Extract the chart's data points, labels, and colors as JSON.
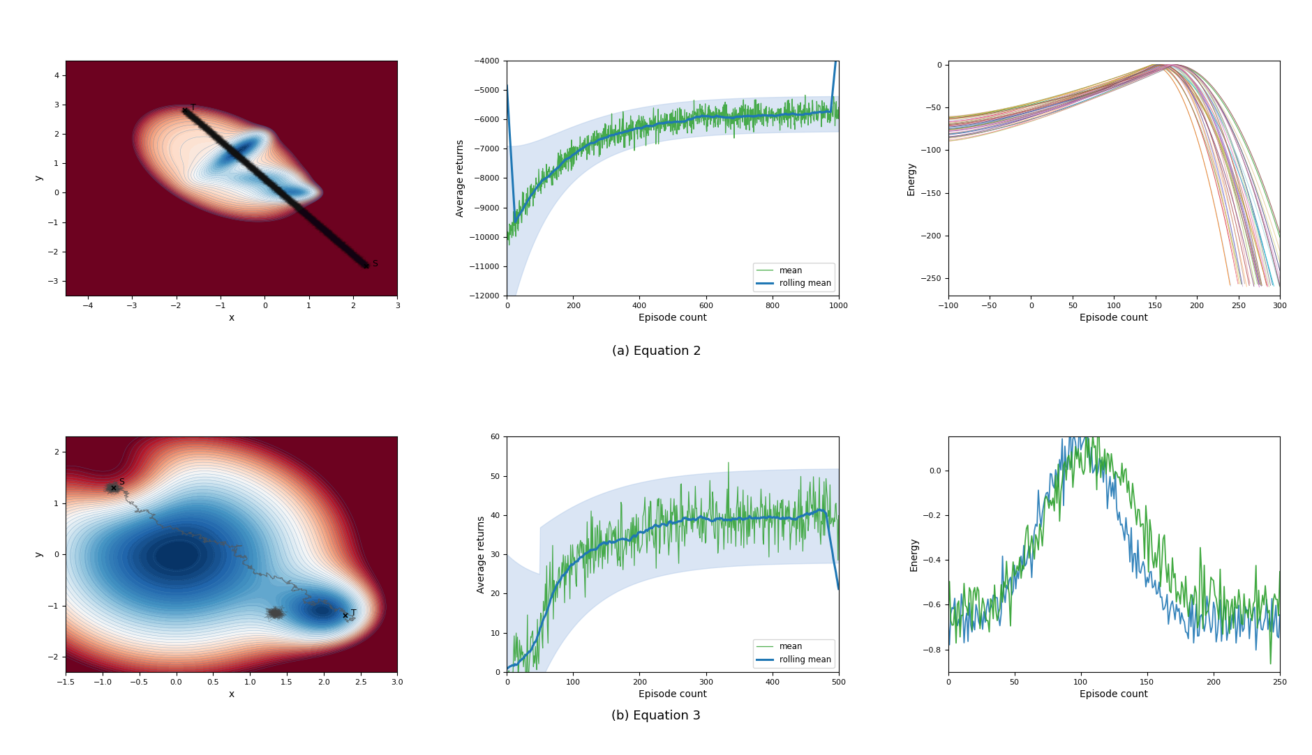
{
  "fig_width": 18.81,
  "fig_height": 10.83,
  "dpi": 100,
  "background_color": "#ffffff",
  "caption_a": "(a) Equation 2",
  "caption_b": "(b) Equation 3",
  "caption_fontsize": 13,
  "mean_color": "#2ca02c",
  "rolling_color": "#1f77b4",
  "band_color": "#aec7e8",
  "returns1": {
    "xlim": [
      0,
      1000
    ],
    "ylim": [
      -12000,
      -4000
    ]
  },
  "returns2": {
    "xlim": [
      0,
      500
    ],
    "ylim": [
      0,
      60
    ]
  },
  "energy1": {
    "xlim": [
      -100,
      300
    ],
    "ylim": [
      -270,
      5
    ]
  },
  "energy2": {
    "xlim": [
      0,
      250
    ],
    "ylim": [
      -0.9,
      0.15
    ]
  }
}
